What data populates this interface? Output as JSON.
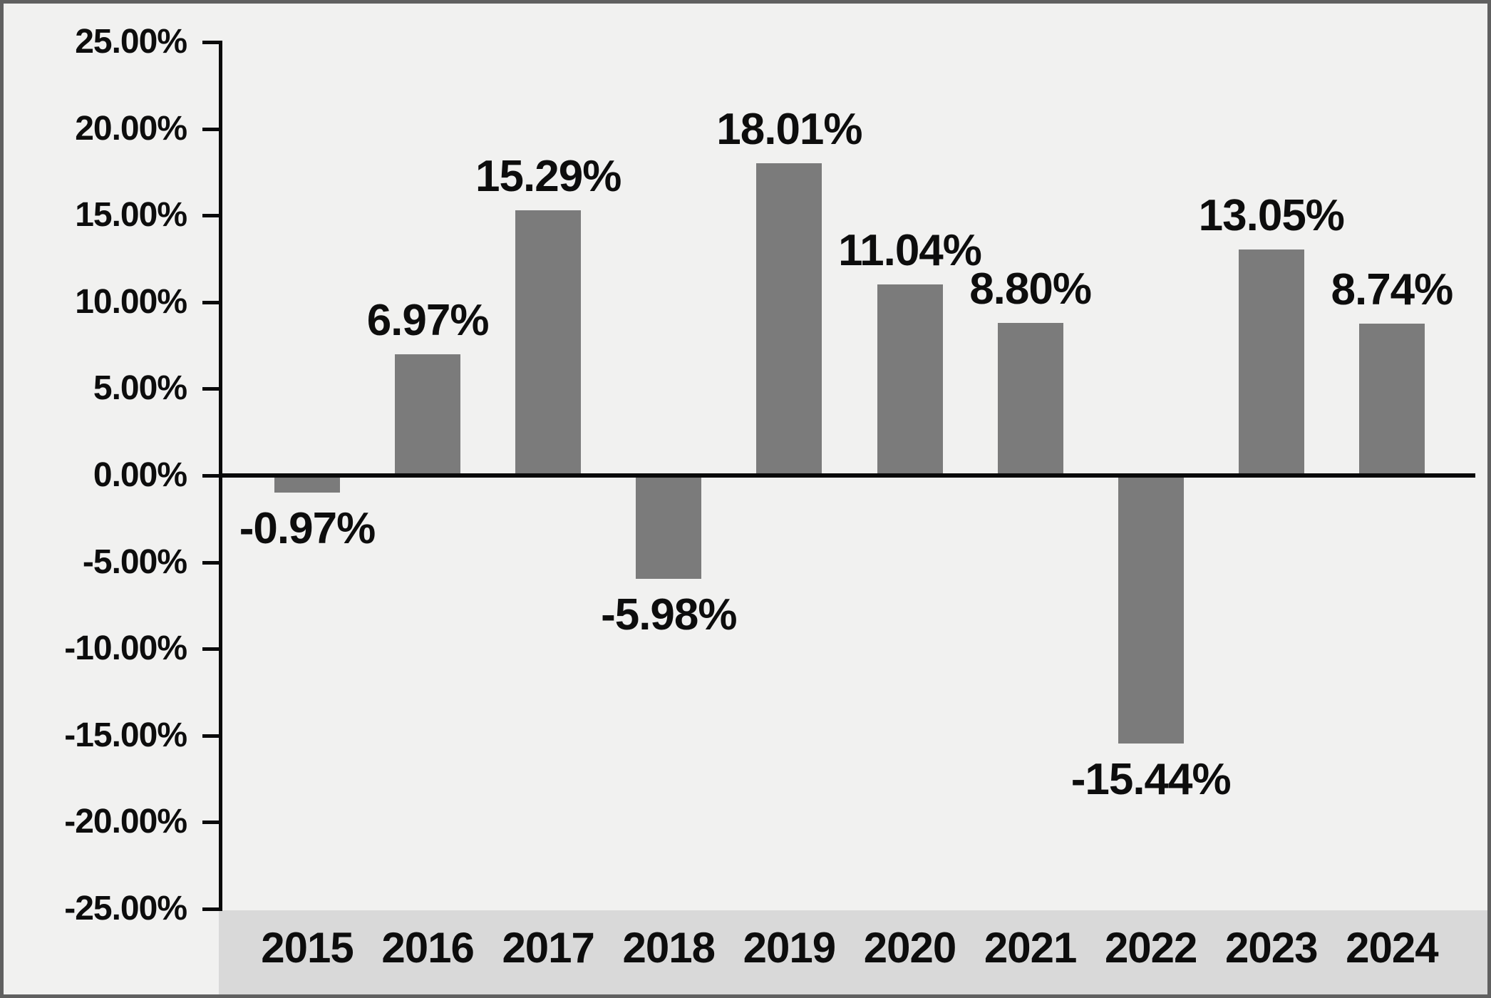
{
  "chart_data": {
    "type": "bar",
    "title": "",
    "xlabel": "",
    "ylabel": "",
    "categories": [
      "2015",
      "2016",
      "2017",
      "2018",
      "2019",
      "2020",
      "2021",
      "2022",
      "2023",
      "2024"
    ],
    "values": [
      -0.97,
      6.97,
      15.29,
      -5.98,
      18.01,
      11.04,
      8.8,
      -15.44,
      13.05,
      8.74
    ],
    "data_labels": [
      "-0.97%",
      "6.97%",
      "15.29%",
      "-5.98%",
      "18.01%",
      "11.04%",
      "8.80%",
      "-15.44%",
      "13.05%",
      "8.74%"
    ],
    "y_tick_labels": [
      "25.00%",
      "20.00%",
      "15.00%",
      "10.00%",
      "5.00%",
      "0.00%",
      "-5.00%",
      "-10.00%",
      "-15.00%",
      "-20.00%",
      "-25.00%"
    ],
    "y_tick_values": [
      25,
      20,
      15,
      10,
      5,
      0,
      -5,
      -10,
      -15,
      -20,
      -25
    ],
    "ylim": [
      -25,
      25
    ],
    "grid": "off",
    "legend": "none",
    "colors": {
      "bar": "#7b7b7b",
      "plot_background": "#f1f1f0",
      "category_strip_background": "#d9d9d9",
      "axis_line": "#0a0a0a",
      "label_text": "#0d0d0d",
      "outer_border": "#606060"
    }
  }
}
